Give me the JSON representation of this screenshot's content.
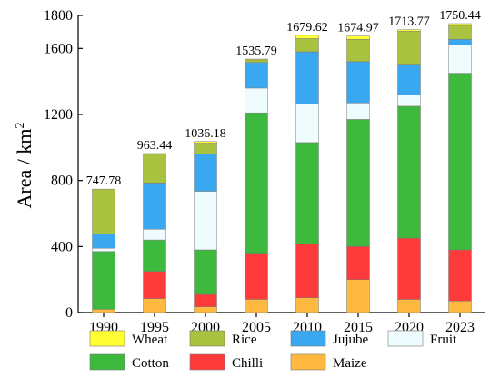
{
  "chart_data": {
    "type": "bar",
    "stacked": true,
    "ylabel": "Area / km",
    "ylabel_superscript": "2",
    "ylim": [
      0,
      1800
    ],
    "yticks": [
      0,
      400,
      800,
      1200,
      1600,
      1800
    ],
    "categories": [
      "1990",
      "1995",
      "2000",
      "2005",
      "2010",
      "2015",
      "2020",
      "2023"
    ],
    "totals": [
      "747.78",
      "963.44",
      "1036.18",
      "1535.79",
      "1679.62",
      "1674.97",
      "1713.77",
      "1750.44"
    ],
    "series": [
      {
        "name": "Maize",
        "color": "#FFB940",
        "values": [
          20,
          85,
          35,
          80,
          90,
          200,
          80,
          70
        ]
      },
      {
        "name": "Chilli",
        "color": "#FF3A3A",
        "values": [
          0,
          165,
          75,
          280,
          325,
          200,
          370,
          310
        ]
      },
      {
        "name": "Cotton",
        "color": "#3DBA3D",
        "values": [
          350,
          190,
          270,
          850,
          615,
          770,
          800,
          1070
        ]
      },
      {
        "name": "Fruit",
        "color": "#EFFCFE",
        "values": [
          20,
          65,
          355,
          150,
          235,
          100,
          70,
          170
        ]
      },
      {
        "name": "Jujube",
        "color": "#3AA8F0",
        "values": [
          85,
          280,
          225,
          155,
          315,
          250,
          185,
          35
        ]
      },
      {
        "name": "Rice",
        "color": "#A9C23F",
        "values": [
          272.78,
          178.44,
          66.18,
          15.79,
          79.62,
          134.97,
          198.77,
          85.44
        ]
      },
      {
        "name": "Wheat",
        "color": "#FFFF33",
        "values": [
          0,
          0,
          10,
          5,
          20,
          20,
          10,
          10
        ]
      }
    ],
    "legend": {
      "placement": "bottom",
      "rows": [
        [
          "Wheat",
          "Rice",
          "Jujube",
          "Fruit"
        ],
        [
          "Cotton",
          "Chilli",
          "Maize"
        ]
      ]
    }
  }
}
